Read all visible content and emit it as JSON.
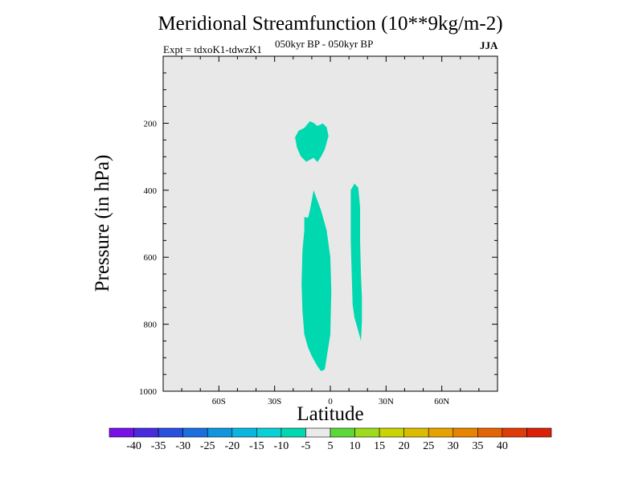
{
  "chart_data": {
    "type": "contour",
    "title": "Meridional Streamfunction (10**9kg/m-2)",
    "experiment_label": "Expt = tdxoK1-tdwzK1",
    "period_label": "050kyr BP - 050kyr BP",
    "season_label": "JJA",
    "xlabel": "Latitude",
    "ylabel": "Pressure (in hPa)",
    "xlim": [
      -90,
      90
    ],
    "ylim": [
      1000,
      0
    ],
    "x_ticks": [
      {
        "value": -60,
        "label": "60S"
      },
      {
        "value": -30,
        "label": "30S"
      },
      {
        "value": 0,
        "label": "0"
      },
      {
        "value": 30,
        "label": "30N"
      },
      {
        "value": 60,
        "label": "60N"
      }
    ],
    "y_ticks": [
      {
        "value": 200,
        "label": "200"
      },
      {
        "value": 400,
        "label": "400"
      },
      {
        "value": 600,
        "label": "600"
      },
      {
        "value": 800,
        "label": "800"
      },
      {
        "value": 1000,
        "label": "1000"
      }
    ],
    "background_color": "#e8e8e8",
    "filled_regions": [
      {
        "name": "upper-cell",
        "level_range": [
          -10,
          -5
        ],
        "color": "#00d8b0",
        "polygon": [
          [
            -14,
            214
          ],
          [
            -11,
            194
          ],
          [
            -9,
            199
          ],
          [
            -7,
            208
          ],
          [
            -4,
            201
          ],
          [
            -2,
            212
          ],
          [
            -1,
            238
          ],
          [
            -2,
            258
          ],
          [
            -3,
            278
          ],
          [
            -5,
            300
          ],
          [
            -7,
            316
          ],
          [
            -9,
            303
          ],
          [
            -13,
            315
          ],
          [
            -16,
            298
          ],
          [
            -18,
            272
          ],
          [
            -19,
            242
          ],
          [
            -17,
            222
          ]
        ]
      },
      {
        "name": "lower-southern-cell",
        "level_range": [
          -10,
          -5
        ],
        "color": "#00d8b0",
        "polygon": [
          [
            -9,
            400
          ],
          [
            -7,
            430
          ],
          [
            -5,
            460
          ],
          [
            -2,
            520
          ],
          [
            0,
            600
          ],
          [
            0.5,
            700
          ],
          [
            0,
            830
          ],
          [
            -2,
            900
          ],
          [
            -3,
            935
          ],
          [
            -5,
            940
          ],
          [
            -7,
            925
          ],
          [
            -10,
            895
          ],
          [
            -12,
            870
          ],
          [
            -14,
            830
          ],
          [
            -15,
            760
          ],
          [
            -15.5,
            680
          ],
          [
            -15,
            580
          ],
          [
            -14,
            520
          ],
          [
            -14,
            480
          ],
          [
            -12,
            482
          ],
          [
            -11,
            460
          ]
        ]
      },
      {
        "name": "lower-northern-cell",
        "level_range": [
          -10,
          -5
        ],
        "color": "#00d8b0",
        "polygon": [
          [
            11,
            400
          ],
          [
            13,
            380
          ],
          [
            15,
            392
          ],
          [
            16,
            450
          ],
          [
            16,
            550
          ],
          [
            16.5,
            650
          ],
          [
            17,
            720
          ],
          [
            17,
            790
          ],
          [
            16.5,
            850
          ],
          [
            15,
            820
          ],
          [
            13,
            780
          ],
          [
            12,
            740
          ],
          [
            11.5,
            650
          ],
          [
            11,
            550
          ],
          [
            11,
            470
          ]
        ]
      }
    ],
    "colorbar": {
      "colors": [
        "#7a10e8",
        "#4a2ce0",
        "#2850e0",
        "#1a70e0",
        "#1096e0",
        "#08b6e0",
        "#06d0d8",
        "#00d8b0",
        "#eaeaea",
        "#5cd838",
        "#9cdc1a",
        "#cad400",
        "#dcbc00",
        "#e8a200",
        "#e88400",
        "#e46404",
        "#e03c08",
        "#dc2008"
      ],
      "labels": [
        "-40",
        "-35",
        "-30",
        "-25",
        "-20",
        "-15",
        "-10",
        "-5",
        "5",
        "10",
        "15",
        "20",
        "25",
        "30",
        "35",
        "40"
      ]
    }
  }
}
